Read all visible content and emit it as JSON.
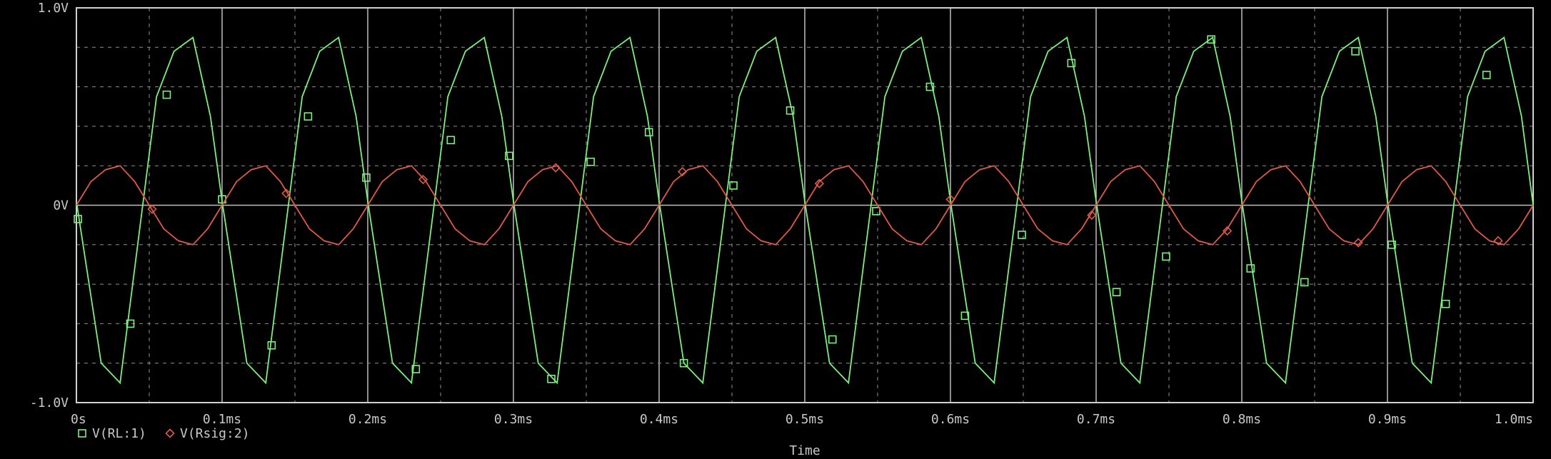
{
  "chart_data": {
    "type": "line",
    "title": "",
    "xlabel": "Time",
    "ylabel": "",
    "xlim": [
      0,
      1.0
    ],
    "ylim": [
      -1.0,
      1.0
    ],
    "grid": true,
    "legend_placement": "bottom-left",
    "x_ticks": [
      0,
      0.1,
      0.2,
      0.3,
      0.4,
      0.5,
      0.6,
      0.7,
      0.8,
      0.9,
      1.0
    ],
    "x_tick_labels": [
      "0s",
      "0.1ms",
      "0.2ms",
      "0.3ms",
      "0.4ms",
      "0.5ms",
      "0.6ms",
      "0.7ms",
      "0.8ms",
      "0.9ms",
      "1.0ms"
    ],
    "y_ticks": [
      -1.0,
      0,
      1.0
    ],
    "y_tick_labels": [
      "-1.0V",
      "0V",
      "1.0V"
    ],
    "series": [
      {
        "name": "V(RL:1)",
        "color": "#7cf07c",
        "marker": "square",
        "x": [
          0,
          0.017,
          0.03,
          0.055,
          0.067,
          0.08,
          0.092,
          0.1,
          0.117,
          0.13,
          0.155,
          0.167,
          0.18,
          0.192,
          0.2,
          0.217,
          0.23,
          0.255,
          0.267,
          0.28,
          0.292,
          0.3,
          0.317,
          0.33,
          0.355,
          0.367,
          0.38,
          0.392,
          0.4,
          0.417,
          0.43,
          0.455,
          0.467,
          0.48,
          0.492,
          0.5,
          0.517,
          0.53,
          0.555,
          0.567,
          0.58,
          0.592,
          0.6,
          0.617,
          0.63,
          0.655,
          0.667,
          0.68,
          0.692,
          0.7,
          0.717,
          0.73,
          0.755,
          0.767,
          0.78,
          0.792,
          0.8,
          0.817,
          0.83,
          0.855,
          0.867,
          0.88,
          0.892,
          0.9,
          0.917,
          0.93,
          0.955,
          0.967,
          0.98,
          0.992,
          1.0
        ],
        "values": [
          0.02,
          -0.8,
          -0.9,
          0.55,
          0.78,
          0.85,
          0.45,
          0.02,
          -0.8,
          -0.9,
          0.55,
          0.78,
          0.85,
          0.45,
          0.02,
          -0.8,
          -0.9,
          0.55,
          0.78,
          0.85,
          0.45,
          0.02,
          -0.8,
          -0.9,
          0.55,
          0.78,
          0.85,
          0.45,
          0.02,
          -0.8,
          -0.9,
          0.55,
          0.78,
          0.85,
          0.45,
          0.02,
          -0.8,
          -0.9,
          0.55,
          0.78,
          0.85,
          0.45,
          0.02,
          -0.8,
          -0.9,
          0.55,
          0.78,
          0.85,
          0.45,
          0.02,
          -0.8,
          -0.9,
          0.55,
          0.78,
          0.85,
          0.45,
          0.02,
          -0.8,
          -0.9,
          0.55,
          0.78,
          0.85,
          0.45,
          0.02,
          -0.8,
          -0.9,
          0.55,
          0.78,
          0.85,
          0.45,
          0.0
        ],
        "markers": [
          [
            0.001,
            -0.07
          ],
          [
            0.037,
            -0.6
          ],
          [
            0.062,
            0.56
          ],
          [
            0.1,
            0.03
          ],
          [
            0.134,
            -0.71
          ],
          [
            0.159,
            0.45
          ],
          [
            0.199,
            0.14
          ],
          [
            0.233,
            -0.83
          ],
          [
            0.257,
            0.33
          ],
          [
            0.297,
            0.25
          ],
          [
            0.326,
            -0.88
          ],
          [
            0.353,
            0.22
          ],
          [
            0.393,
            0.37
          ],
          [
            0.417,
            -0.8
          ],
          [
            0.451,
            0.1
          ],
          [
            0.49,
            0.48
          ],
          [
            0.519,
            -0.68
          ],
          [
            0.549,
            -0.03
          ],
          [
            0.586,
            0.6
          ],
          [
            0.61,
            -0.56
          ],
          [
            0.649,
            -0.15
          ],
          [
            0.683,
            0.72
          ],
          [
            0.714,
            -0.44
          ],
          [
            0.748,
            -0.26
          ],
          [
            0.779,
            0.84
          ],
          [
            0.806,
            -0.32
          ],
          [
            0.843,
            -0.39
          ],
          [
            0.878,
            0.78
          ],
          [
            0.903,
            -0.2
          ],
          [
            0.94,
            -0.5
          ],
          [
            0.968,
            0.66
          ]
        ]
      },
      {
        "name": "V(Rsig:2)",
        "color": "#e05a48",
        "marker": "diamond",
        "x": [
          0,
          0.01,
          0.02,
          0.03,
          0.04,
          0.05,
          0.06,
          0.07,
          0.08,
          0.09,
          0.1,
          0.11,
          0.12,
          0.13,
          0.14,
          0.15,
          0.16,
          0.17,
          0.18,
          0.19,
          0.2,
          0.21,
          0.22,
          0.23,
          0.24,
          0.25,
          0.26,
          0.27,
          0.28,
          0.29,
          0.3,
          0.31,
          0.32,
          0.33,
          0.34,
          0.35,
          0.36,
          0.37,
          0.38,
          0.39,
          0.4,
          0.41,
          0.42,
          0.43,
          0.44,
          0.45,
          0.46,
          0.47,
          0.48,
          0.49,
          0.5,
          0.51,
          0.52,
          0.53,
          0.54,
          0.55,
          0.56,
          0.57,
          0.58,
          0.59,
          0.6,
          0.61,
          0.62,
          0.63,
          0.64,
          0.65,
          0.66,
          0.67,
          0.68,
          0.69,
          0.7,
          0.71,
          0.72,
          0.73,
          0.74,
          0.75,
          0.76,
          0.77,
          0.78,
          0.79,
          0.8,
          0.81,
          0.82,
          0.83,
          0.84,
          0.85,
          0.86,
          0.87,
          0.88,
          0.89,
          0.9,
          0.91,
          0.92,
          0.93,
          0.94,
          0.95,
          0.96,
          0.97,
          0.98,
          0.99,
          1.0
        ],
        "values": [
          0,
          0.12,
          0.18,
          0.2,
          0.12,
          0,
          -0.12,
          -0.18,
          -0.2,
          -0.12,
          0,
          0.12,
          0.18,
          0.2,
          0.12,
          0,
          -0.12,
          -0.18,
          -0.2,
          -0.12,
          0,
          0.12,
          0.18,
          0.2,
          0.12,
          0,
          -0.12,
          -0.18,
          -0.2,
          -0.12,
          0,
          0.12,
          0.18,
          0.2,
          0.12,
          0,
          -0.12,
          -0.18,
          -0.2,
          -0.12,
          0,
          0.12,
          0.18,
          0.2,
          0.12,
          0,
          -0.12,
          -0.18,
          -0.2,
          -0.12,
          0,
          0.12,
          0.18,
          0.2,
          0.12,
          0,
          -0.12,
          -0.18,
          -0.2,
          -0.12,
          0,
          0.12,
          0.18,
          0.2,
          0.12,
          0,
          -0.12,
          -0.18,
          -0.2,
          -0.12,
          0,
          0.12,
          0.18,
          0.2,
          0.12,
          0,
          -0.12,
          -0.18,
          -0.2,
          -0.12,
          0,
          0.12,
          0.18,
          0.2,
          0.12,
          0,
          -0.12,
          -0.18,
          -0.2,
          -0.12,
          0,
          0.12,
          0.18,
          0.2,
          0.12,
          0,
          -0.12,
          -0.18,
          -0.2,
          -0.12,
          0
        ],
        "markers": [
          [
            0.052,
            -0.02
          ],
          [
            0.144,
            0.06
          ],
          [
            0.238,
            0.13
          ],
          [
            0.329,
            0.19
          ],
          [
            0.416,
            0.17
          ],
          [
            0.51,
            0.11
          ],
          [
            0.6,
            0.03
          ],
          [
            0.697,
            -0.05
          ],
          [
            0.79,
            -0.13
          ],
          [
            0.88,
            -0.19
          ],
          [
            0.976,
            -0.18
          ]
        ]
      }
    ]
  }
}
